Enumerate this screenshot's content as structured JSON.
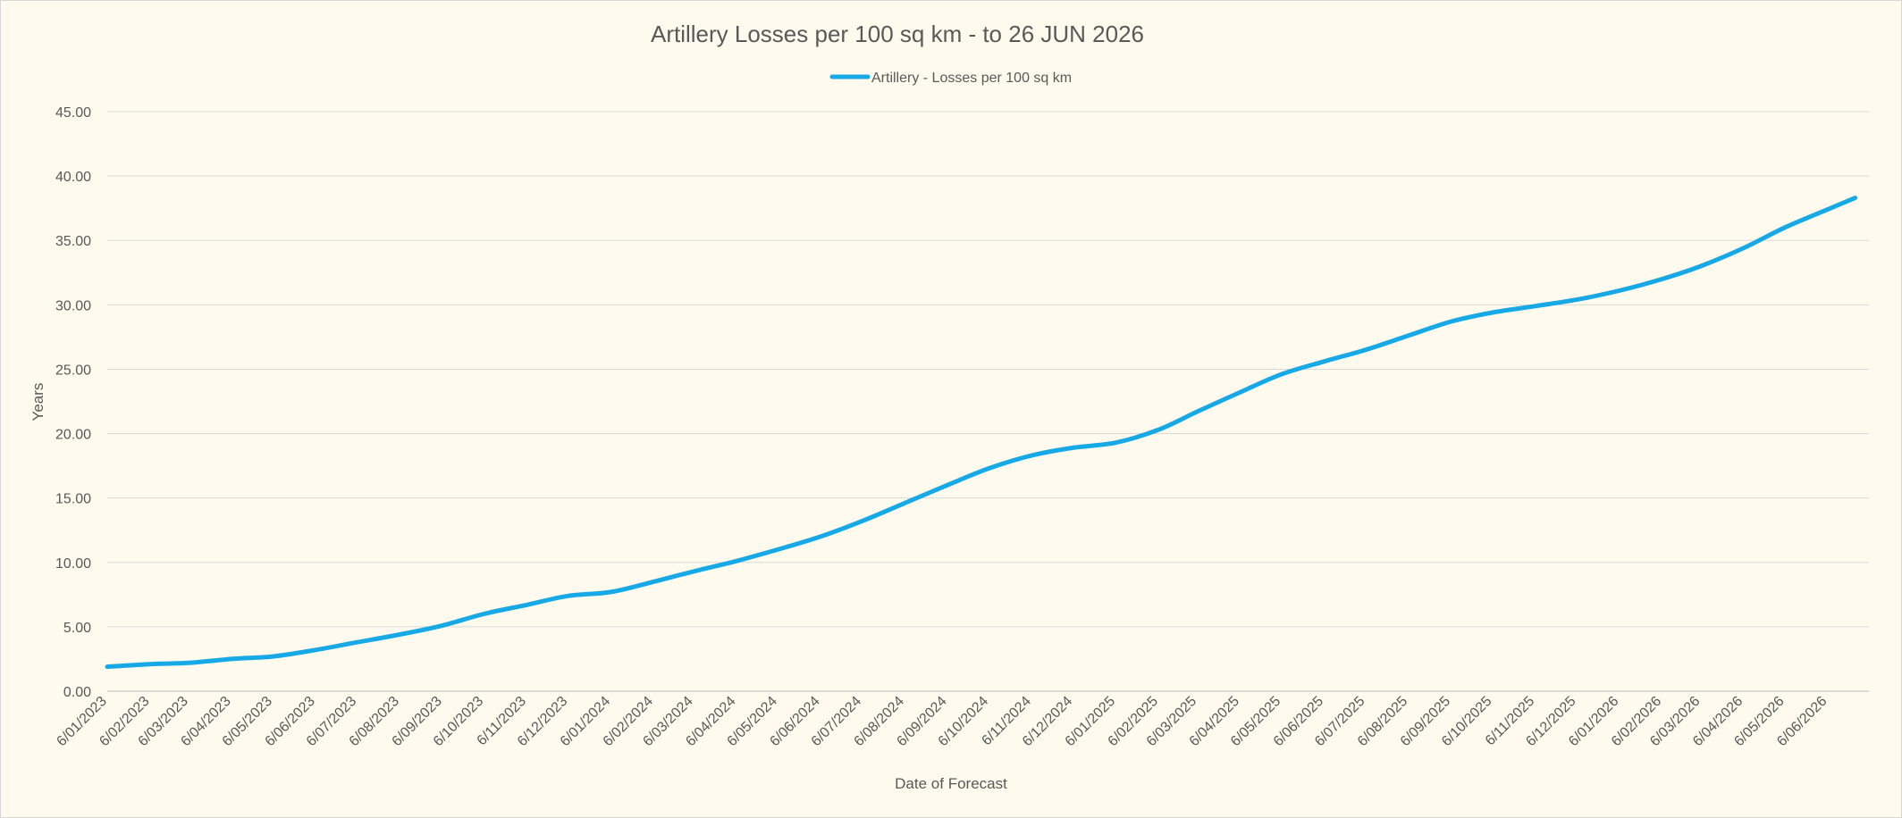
{
  "chart_data": {
    "type": "line",
    "title": "Artillery Losses per 100 sq km - to 26 JUN 2026",
    "xlabel": "Date of Forecast",
    "ylabel": "Years",
    "legend": {
      "position": "top"
    },
    "grid": {
      "y": true,
      "x": false
    },
    "ylim": [
      0,
      45
    ],
    "yticks": [
      "0.00",
      "5.00",
      "10.00",
      "15.00",
      "20.00",
      "25.00",
      "30.00",
      "35.00",
      "40.00",
      "45.00"
    ],
    "xlim": [
      "2023-01-06",
      "2026-07-06"
    ],
    "x_tick_labels": [
      "6/01/2023",
      "6/02/2023",
      "6/03/2023",
      "6/04/2023",
      "6/05/2023",
      "6/06/2023",
      "6/07/2023",
      "6/08/2023",
      "6/09/2023",
      "6/10/2023",
      "6/11/2023",
      "6/12/2023",
      "6/01/2024",
      "6/02/2024",
      "6/03/2024",
      "6/04/2024",
      "6/05/2024",
      "6/06/2024",
      "6/07/2024",
      "6/08/2024",
      "6/09/2024",
      "6/10/2024",
      "6/11/2024",
      "6/12/2024",
      "6/01/2025",
      "6/02/2025",
      "6/03/2025",
      "6/04/2025",
      "6/05/2025",
      "6/06/2025",
      "6/07/2025",
      "6/08/2025",
      "6/09/2025",
      "6/10/2025",
      "6/11/2025",
      "6/12/2025",
      "6/01/2026",
      "6/02/2026",
      "6/03/2026",
      "6/04/2026",
      "6/05/2026",
      "6/06/2026"
    ],
    "series": [
      {
        "name": "Artillery - Losses per 100 sq km",
        "color": "#17a9e6",
        "x": [
          "2023-01-06",
          "2023-02-06",
          "2023-03-06",
          "2023-04-06",
          "2023-05-06",
          "2023-06-06",
          "2023-07-06",
          "2023-08-06",
          "2023-09-06",
          "2023-10-06",
          "2023-11-06",
          "2023-12-06",
          "2024-01-06",
          "2024-02-06",
          "2024-03-06",
          "2024-04-06",
          "2024-05-06",
          "2024-06-06",
          "2024-07-06",
          "2024-08-06",
          "2024-09-06",
          "2024-10-06",
          "2024-11-06",
          "2024-12-06",
          "2025-01-06",
          "2025-02-06",
          "2025-03-06",
          "2025-04-06",
          "2025-05-06",
          "2025-06-06",
          "2025-07-06",
          "2025-08-06",
          "2025-09-06",
          "2025-10-06",
          "2025-11-06",
          "2025-12-06",
          "2026-01-06",
          "2026-02-06",
          "2026-03-06",
          "2026-04-06",
          "2026-05-06",
          "2026-06-06",
          "2026-06-26"
        ],
        "values": [
          1.9,
          2.1,
          2.2,
          2.5,
          2.7,
          3.2,
          3.8,
          4.4,
          5.1,
          6.0,
          6.7,
          7.4,
          7.7,
          8.5,
          9.3,
          10.1,
          11.0,
          12.0,
          13.2,
          14.6,
          16.0,
          17.3,
          18.3,
          18.9,
          19.3,
          20.3,
          21.7,
          23.2,
          24.6,
          25.6,
          26.5,
          27.6,
          28.7,
          29.4,
          29.9,
          30.4,
          31.1,
          32.0,
          33.0,
          34.4,
          36.0,
          37.4,
          38.3
        ]
      }
    ]
  }
}
